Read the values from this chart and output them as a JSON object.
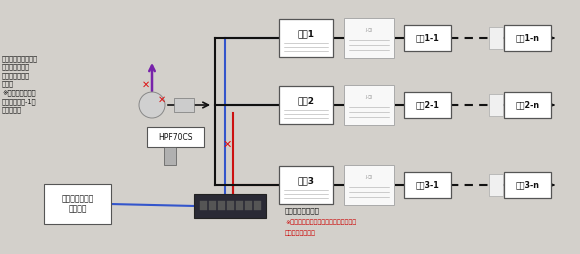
{
  "bg_color": "#d3d0cb",
  "left_text_lines": [
    "ハイパスフィルター",
    "による、系統間",
    "高周波信号遮波",
    "の遮断",
    "※ハイパスフィル",
    "ターは系統数-1台",
    "使用します"
  ],
  "hpf_label": "HPF70CS",
  "oyaki_labels": [
    "親機1",
    "親機2",
    "親機3"
  ],
  "koki_labels": [
    [
      "子機1-1",
      "子機1-n"
    ],
    [
      "子機2-1",
      "子機2-n"
    ],
    [
      "子機3-1",
      "子機3-n"
    ]
  ],
  "internet_label": "インターネット\nルーター",
  "switch_text1": "スイッチングハブによる",
  "switch_text2": "親機間通信の制限",
  "switch_text3": "※親機が接続されるすべてのポートにて",
  "switch_text4": "設定が必要です。",
  "line_black": "#111111",
  "line_blue": "#3355cc",
  "line_red": "#cc1111",
  "line_purple": "#7722aa",
  "x_color": "#dd1111",
  "box_white": "#ffffff",
  "box_light": "#f2f2f2",
  "box_edge": "#888888"
}
